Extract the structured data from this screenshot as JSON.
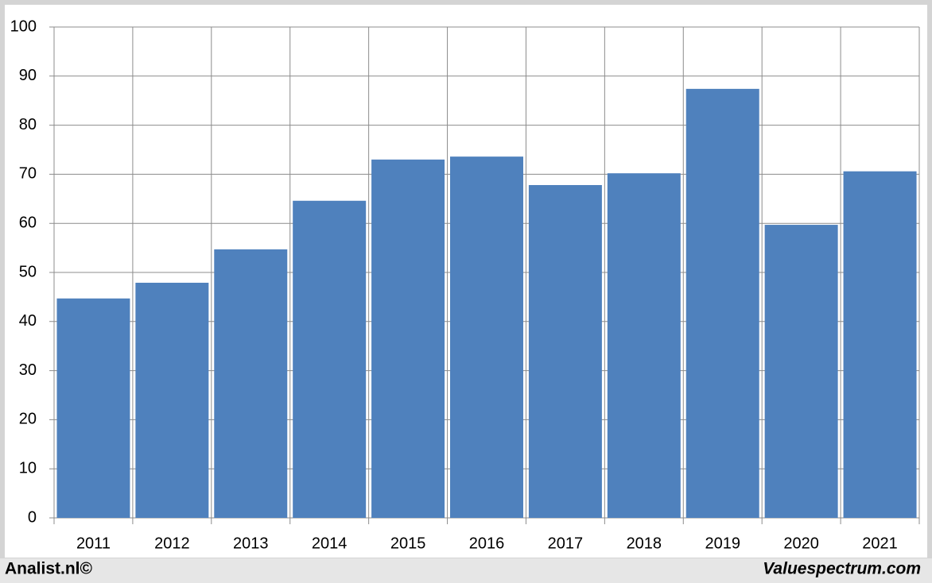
{
  "chart_data": {
    "type": "bar",
    "categories": [
      "2011",
      "2012",
      "2013",
      "2014",
      "2015",
      "2016",
      "2017",
      "2018",
      "2019",
      "2020",
      "2021"
    ],
    "values": [
      44.7,
      47.9,
      54.7,
      64.6,
      73.0,
      73.6,
      67.8,
      70.2,
      87.4,
      59.7,
      70.6
    ],
    "color": "#4f81bd",
    "ylim": [
      0,
      100
    ],
    "yticks": [
      0,
      10,
      20,
      30,
      40,
      50,
      60,
      70,
      80,
      90,
      100
    ],
    "grid": true
  },
  "footer": {
    "left": "Analist.nl©",
    "right": "Valuespectrum.com"
  }
}
